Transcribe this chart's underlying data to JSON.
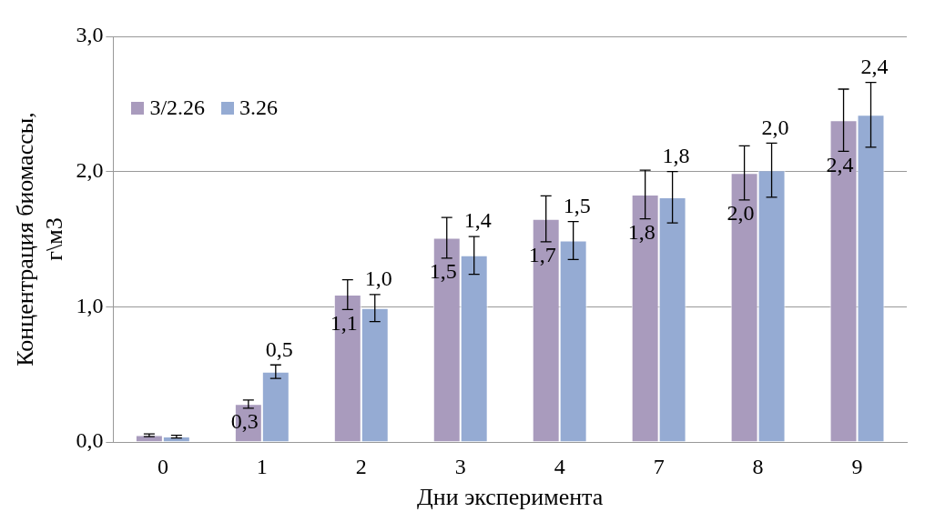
{
  "chart_data": {
    "type": "bar",
    "xlabel": "Дни эксперимента",
    "ylabel": "Концентрация биомассы, г\\м3",
    "categories": [
      "0",
      "1",
      "2",
      "3",
      "4",
      "7",
      "8",
      "9"
    ],
    "ylim": [
      0,
      3
    ],
    "yticks": [
      {
        "value": 0,
        "label": "0,0"
      },
      {
        "value": 1,
        "label": "1,0"
      },
      {
        "value": 2,
        "label": "2,0"
      },
      {
        "value": 3,
        "label": "3,0"
      }
    ],
    "grid": "y",
    "legend": "top left",
    "series": [
      {
        "name": "3/2.26",
        "color": "#a99bbd",
        "values": [
          0.05,
          0.28,
          1.09,
          1.51,
          1.65,
          1.83,
          1.99,
          2.38
        ],
        "errors": [
          0.01,
          0.03,
          0.11,
          0.15,
          0.17,
          0.18,
          0.2,
          0.23
        ],
        "value_labels": [
          null,
          "0,3",
          "1,1",
          "1,5",
          "1,7",
          "1,8",
          "2,0",
          "2,4"
        ]
      },
      {
        "name": "3.26",
        "color": "#95abd3",
        "values": [
          0.04,
          0.52,
          0.99,
          1.38,
          1.49,
          1.81,
          2.01,
          2.42
        ],
        "errors": [
          0.01,
          0.05,
          0.1,
          0.14,
          0.14,
          0.19,
          0.2,
          0.24
        ],
        "value_labels": [
          null,
          "0,5",
          "1,0",
          "1,4",
          "1,5",
          "1,8",
          "2,0",
          "2,4"
        ]
      }
    ]
  }
}
